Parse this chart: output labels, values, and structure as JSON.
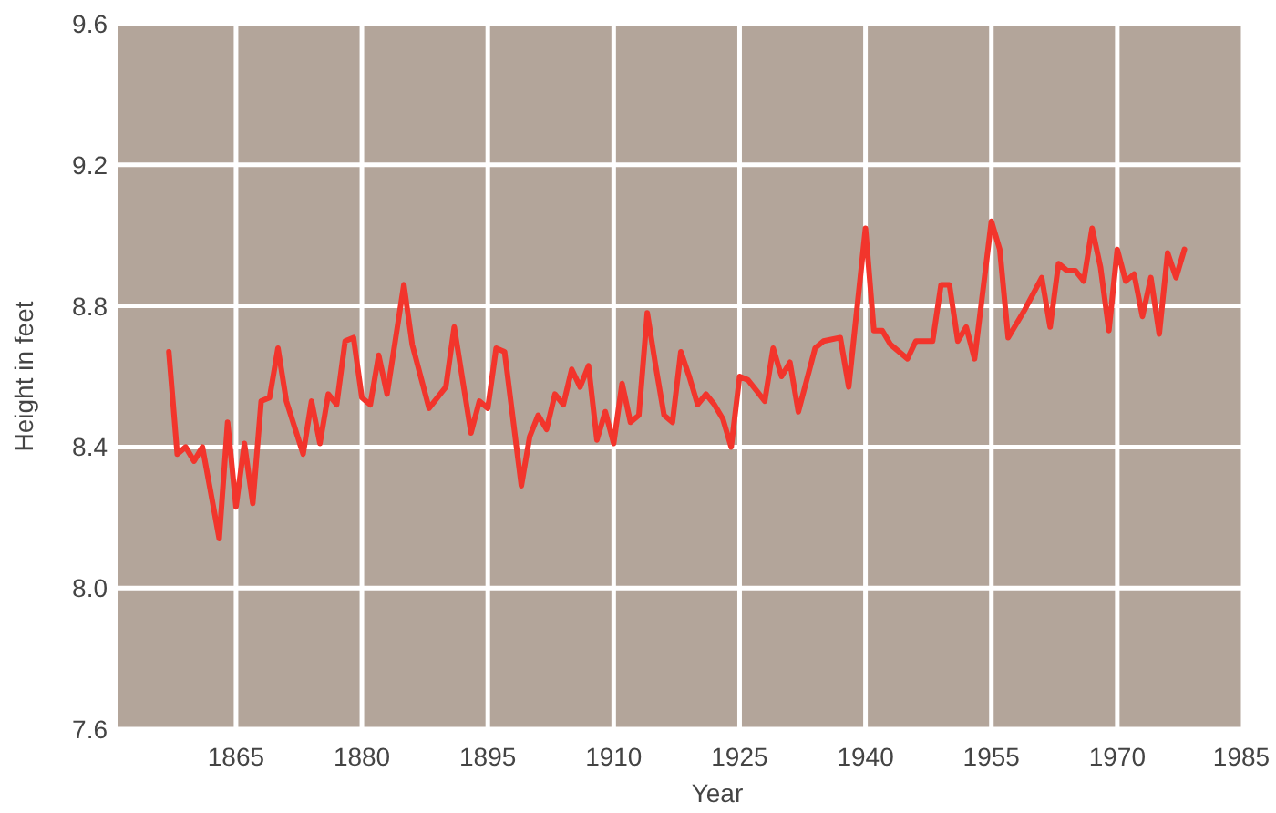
{
  "chart_data": {
    "type": "line",
    "xlabel": "Year",
    "ylabel": "Height in feet",
    "x": [
      1857,
      1858,
      1859,
      1860,
      1861,
      1863,
      1864,
      1865,
      1866,
      1867,
      1868,
      1869,
      1870,
      1871,
      1873,
      1874,
      1875,
      1876,
      1877,
      1878,
      1879,
      1880,
      1881,
      1882,
      1883,
      1885,
      1886,
      1888,
      1890,
      1891,
      1893,
      1894,
      1895,
      1896,
      1897,
      1899,
      1900,
      1901,
      1902,
      1903,
      1904,
      1905,
      1906,
      1907,
      1908,
      1909,
      1910,
      1911,
      1912,
      1913,
      1914,
      1915,
      1916,
      1917,
      1918,
      1919,
      1920,
      1921,
      1922,
      1923,
      1924,
      1925,
      1926,
      1927,
      1928,
      1929,
      1930,
      1931,
      1932,
      1934,
      1935,
      1937,
      1938,
      1940,
      1941,
      1942,
      1943,
      1944,
      1945,
      1946,
      1948,
      1949,
      1950,
      1951,
      1952,
      1953,
      1955,
      1956,
      1957,
      1959,
      1961,
      1962,
      1963,
      1964,
      1965,
      1966,
      1967,
      1968,
      1969,
      1970,
      1971,
      1972,
      1973,
      1974,
      1975,
      1976,
      1977,
      1978
    ],
    "series": [
      {
        "color": "#f2352c",
        "values": [
          8.67,
          8.38,
          8.4,
          8.36,
          8.4,
          8.14,
          8.47,
          8.23,
          8.41,
          8.24,
          8.53,
          8.54,
          8.68,
          8.53,
          8.38,
          8.53,
          8.41,
          8.55,
          8.52,
          8.7,
          8.71,
          8.54,
          8.52,
          8.66,
          8.55,
          8.86,
          8.69,
          8.51,
          8.57,
          8.74,
          8.44,
          8.53,
          8.51,
          8.68,
          8.67,
          8.29,
          8.43,
          8.49,
          8.45,
          8.55,
          8.52,
          8.62,
          8.57,
          8.63,
          8.42,
          8.5,
          8.41,
          8.58,
          8.47,
          8.49,
          8.78,
          8.63,
          8.49,
          8.47,
          8.67,
          8.6,
          8.52,
          8.55,
          8.52,
          8.48,
          8.4,
          8.6,
          8.59,
          8.56,
          8.53,
          8.68,
          8.6,
          8.64,
          8.5,
          8.68,
          8.7,
          8.71,
          8.57,
          9.02,
          8.73,
          8.73,
          8.69,
          8.67,
          8.65,
          8.7,
          8.7,
          8.86,
          8.86,
          8.7,
          8.74,
          8.65,
          9.04,
          8.96,
          8.71,
          8.79,
          8.88,
          8.74,
          8.92,
          8.9,
          8.9,
          8.87,
          9.02,
          8.91,
          8.73,
          8.96,
          8.87,
          8.89,
          8.77,
          8.88,
          8.72,
          8.95,
          8.88,
          8.96
        ]
      }
    ],
    "xlim": [
      1851,
      1985
    ],
    "xticks": [
      1865,
      1880,
      1895,
      1910,
      1925,
      1940,
      1955,
      1970,
      1985
    ],
    "ylim": [
      7.6,
      9.6
    ],
    "yticks": [
      7.6,
      {
        "value": 8,
        "label": "8.0"
      },
      8.4,
      8.8,
      9.2,
      9.6
    ],
    "grid": true,
    "marker": "none",
    "line_style": "solid"
  }
}
